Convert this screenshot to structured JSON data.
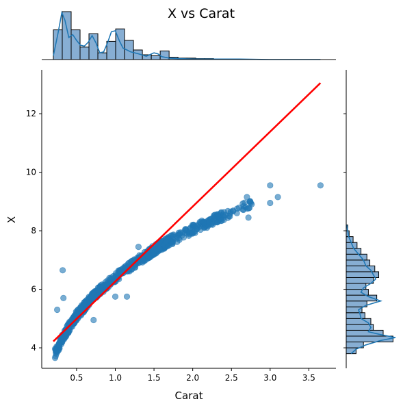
{
  "chart_data": {
    "type": "scatter",
    "title": "X vs Carat",
    "xlabel": "Carat",
    "ylabel": "X",
    "xlim": [
      0.05,
      3.85
    ],
    "ylim": [
      3.3,
      13.5
    ],
    "x_ticks": [
      0.5,
      1.0,
      1.5,
      2.0,
      2.5,
      3.0,
      3.5
    ],
    "x_tick_labels": [
      "0.5",
      "1.0",
      "1.5",
      "2.0",
      "2.5",
      "3.0",
      "3.5"
    ],
    "y_ticks": [
      4,
      6,
      8,
      10,
      12
    ],
    "y_tick_labels": [
      "4",
      "6",
      "8",
      "10",
      "12"
    ],
    "grid": false,
    "colors": {
      "points": "#1f77b4",
      "regression": "#ff0000",
      "hist_fill": "#87aed3",
      "kde": "#1f77b4"
    },
    "regression_line": {
      "x": [
        0.2,
        3.65
      ],
      "y": [
        4.22,
        13.05
      ]
    },
    "scatter_trend": [
      {
        "x": 0.22,
        "y": 3.8
      },
      {
        "x": 0.3,
        "y": 4.25
      },
      {
        "x": 0.4,
        "y": 4.7
      },
      {
        "x": 0.5,
        "y": 5.1
      },
      {
        "x": 0.7,
        "y": 5.7
      },
      {
        "x": 0.9,
        "y": 6.2
      },
      {
        "x": 1.0,
        "y": 6.4
      },
      {
        "x": 1.2,
        "y": 6.8
      },
      {
        "x": 1.5,
        "y": 7.35
      },
      {
        "x": 1.7,
        "y": 7.65
      },
      {
        "x": 2.0,
        "y": 8.05
      },
      {
        "x": 2.3,
        "y": 8.4
      },
      {
        "x": 2.5,
        "y": 8.65
      },
      {
        "x": 2.8,
        "y": 8.95
      },
      {
        "x": 3.0,
        "y": 9.15
      }
    ],
    "scatter_outliers": [
      {
        "x": 0.32,
        "y": 6.65
      },
      {
        "x": 0.33,
        "y": 5.7
      },
      {
        "x": 0.25,
        "y": 5.3
      },
      {
        "x": 0.72,
        "y": 4.95
      },
      {
        "x": 1.0,
        "y": 5.75
      },
      {
        "x": 1.15,
        "y": 5.75
      },
      {
        "x": 3.0,
        "y": 9.55
      },
      {
        "x": 3.1,
        "y": 9.15
      },
      {
        "x": 3.65,
        "y": 9.55
      },
      {
        "x": 2.75,
        "y": 8.95
      },
      {
        "x": 2.7,
        "y": 9.15
      },
      {
        "x": 2.72,
        "y": 8.45
      },
      {
        "x": 3.0,
        "y": 8.95
      },
      {
        "x": 1.3,
        "y": 7.45
      },
      {
        "x": 0.6,
        "y": 5.55
      }
    ],
    "marginal_x": {
      "bin_width": 0.115,
      "bin_starts": [
        0.2,
        0.315,
        0.43,
        0.545,
        0.66,
        0.775,
        0.89,
        1.005,
        1.12,
        1.235,
        1.35,
        1.465,
        1.58,
        1.695,
        1.81,
        1.925,
        2.04,
        2.155
      ],
      "counts": [
        0.62,
        1.0,
        0.62,
        0.26,
        0.54,
        0.14,
        0.38,
        0.64,
        0.4,
        0.2,
        0.1,
        0.08,
        0.18,
        0.05,
        0.03,
        0.03,
        0.02,
        0.02
      ],
      "kde_x": [
        0.2,
        0.26,
        0.31,
        0.35,
        0.4,
        0.45,
        0.5,
        0.55,
        0.6,
        0.65,
        0.7,
        0.75,
        0.8,
        0.85,
        0.9,
        0.95,
        1.0,
        1.05,
        1.1,
        1.15,
        1.2,
        1.3,
        1.4,
        1.5,
        1.55,
        1.6,
        1.7,
        1.8,
        2.0,
        2.3,
        2.6,
        3.0,
        3.65
      ],
      "kde_y": [
        0.08,
        0.55,
        0.98,
        0.82,
        0.46,
        0.52,
        0.4,
        0.3,
        0.28,
        0.36,
        0.5,
        0.35,
        0.14,
        0.16,
        0.35,
        0.58,
        0.6,
        0.4,
        0.24,
        0.2,
        0.16,
        0.12,
        0.07,
        0.14,
        0.12,
        0.06,
        0.03,
        0.02,
        0.01,
        0.01,
        0.01,
        0.0,
        0.0
      ]
    },
    "marginal_y": {
      "bin_height": 0.2,
      "bin_starts": [
        3.8,
        4.0,
        4.2,
        4.4,
        4.6,
        4.8,
        5.0,
        5.2,
        5.4,
        5.6,
        5.8,
        6.0,
        6.2,
        6.4,
        6.6,
        6.8,
        7.0,
        7.2,
        7.4,
        7.6,
        7.8,
        8.0
      ],
      "counts": [
        0.2,
        0.35,
        0.95,
        0.75,
        0.55,
        0.5,
        0.38,
        0.32,
        0.42,
        0.62,
        0.45,
        0.4,
        0.55,
        0.66,
        0.58,
        0.48,
        0.42,
        0.3,
        0.22,
        0.14,
        0.06,
        0.03
      ],
      "kde_y": [
        3.8,
        3.95,
        4.1,
        4.25,
        4.35,
        4.45,
        4.55,
        4.7,
        4.85,
        5.0,
        5.15,
        5.3,
        5.45,
        5.6,
        5.75,
        5.9,
        6.05,
        6.2,
        6.35,
        6.5,
        6.65,
        6.8,
        7.0,
        7.2,
        7.4,
        7.6,
        7.8,
        8.0,
        8.2
      ],
      "kde_x": [
        0.1,
        0.2,
        0.4,
        0.7,
        1.0,
        0.7,
        0.45,
        0.5,
        0.45,
        0.3,
        0.28,
        0.25,
        0.4,
        0.7,
        0.45,
        0.3,
        0.35,
        0.5,
        0.6,
        0.55,
        0.5,
        0.4,
        0.35,
        0.25,
        0.15,
        0.1,
        0.05,
        0.03,
        0.01
      ]
    }
  }
}
